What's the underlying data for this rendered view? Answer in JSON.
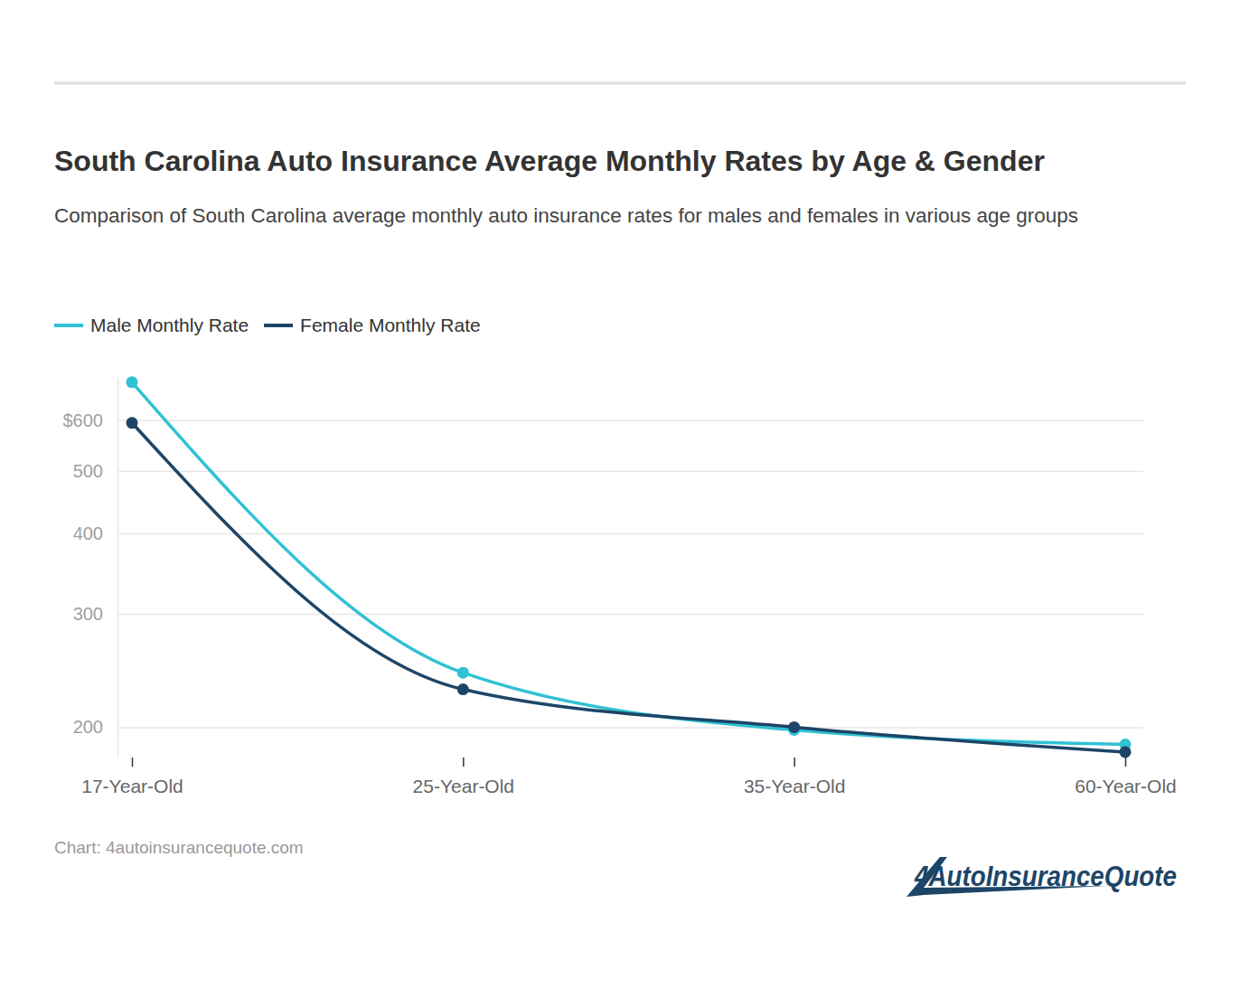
{
  "chart_data": {
    "type": "line",
    "title": "South Carolina Auto Insurance Average Monthly Rates by Age & Gender",
    "subtitle": "Comparison of South Carolina average monthly auto insurance rates for males and females in various age groups",
    "source": "Chart: 4autoinsurancequote.com",
    "logo": "4AutoInsuranceQuote",
    "categories": [
      "17-Year-Old",
      "25-Year-Old",
      "35-Year-Old",
      "60-Year-Old"
    ],
    "series": [
      {
        "name": "Male Monthly Rate",
        "color": "#30c1d4",
        "marker": "circle",
        "values": [
          687,
          243,
          198,
          188
        ]
      },
      {
        "name": "Female Monthly Rate",
        "color": "#1d4567",
        "marker": "circle",
        "values": [
          594,
          229,
          200,
          183
        ]
      }
    ],
    "ylim": [
      180,
      700
    ],
    "yticks": [
      200,
      300,
      400,
      500,
      {
        "value": 600,
        "label": "$600"
      }
    ],
    "log": "y",
    "grid": true,
    "legend": "top-left"
  }
}
